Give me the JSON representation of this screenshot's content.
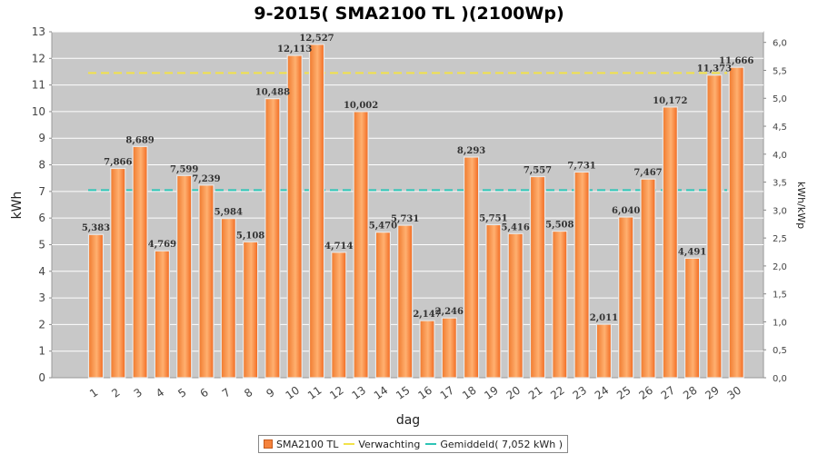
{
  "chart_data": {
    "type": "bar",
    "title": "9-2015( SMA2100 TL )(2100Wp)",
    "xlabel": "dag",
    "ylabel": "kWh",
    "y2label": "kWh/kWp",
    "ylim": [
      0,
      13
    ],
    "y2lim": [
      0,
      6.19
    ],
    "yticks": [
      "0",
      "1",
      "2",
      "3",
      "4",
      "5",
      "6",
      "7",
      "8",
      "9",
      "10",
      "11",
      "12",
      "13"
    ],
    "y2ticks": [
      "0,0",
      "0,5",
      "1,0",
      "1,5",
      "2,0",
      "2,5",
      "3,0",
      "3,5",
      "4,0",
      "4,5",
      "5,0",
      "5,5",
      "6,0"
    ],
    "categories": [
      "1",
      "2",
      "3",
      "4",
      "5",
      "6",
      "7",
      "8",
      "9",
      "10",
      "11",
      "12",
      "13",
      "14",
      "15",
      "16",
      "17",
      "18",
      "19",
      "20",
      "21",
      "22",
      "23",
      "24",
      "25",
      "26",
      "27",
      "28",
      "29",
      "30"
    ],
    "series": [
      {
        "name": "SMA2100 TL",
        "values": [
          5.383,
          7.866,
          8.689,
          4.769,
          7.599,
          7.239,
          5.984,
          5.108,
          10.488,
          12.113,
          12.527,
          4.714,
          10.002,
          5.47,
          5.731,
          2.147,
          2.246,
          8.293,
          5.751,
          5.416,
          7.557,
          5.508,
          7.731,
          2.011,
          6.04,
          7.467,
          10.172,
          4.491,
          11.373,
          11.666
        ],
        "labels": [
          "5,383",
          "7,866",
          "8,689",
          "4,769",
          "7,599",
          "7,239",
          "5,984",
          "5,108",
          "10,488",
          "12,113",
          "12,527",
          "4,714",
          "10,002",
          "5,470",
          "5,731",
          "2,147",
          "2,246",
          "8,293",
          "5,751",
          "5,416",
          "7,557",
          "5,508",
          "7,731",
          "2,011",
          "6,040",
          "7,467",
          "10,172",
          "4,491",
          "11,373",
          "11,666"
        ],
        "color": "#f5823c"
      }
    ],
    "lines": [
      {
        "name": "Verwachting",
        "value": 11.45,
        "color": "#f2e24a"
      },
      {
        "name": "Gemiddeld( 7,052 kWh )",
        "value": 7.052,
        "color": "#2ec4b6"
      }
    ],
    "plot_background": "#c8c8c8",
    "grid": true,
    "legend": "bottom-center"
  }
}
